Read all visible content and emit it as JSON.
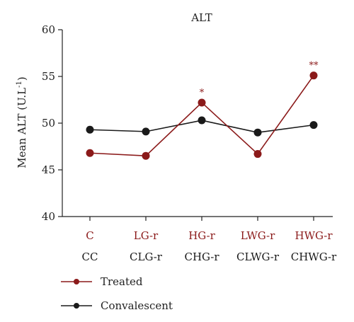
{
  "chart_data": {
    "type": "line",
    "title": "ALT",
    "ylabel": "Mean ALT (U.L",
    "ylabel_superscript": "-1",
    "ylabel_close": ")",
    "ylim": [
      40,
      60
    ],
    "yticks": [
      40,
      45,
      50,
      55,
      60
    ],
    "categories_treated": [
      "C",
      "LG-r",
      "HG-r",
      "LWG-r",
      "HWG-r"
    ],
    "categories_convalescent": [
      "CC",
      "CLG-r",
      "CHG-r",
      "CLWG-r",
      "CHWG-r"
    ],
    "series": [
      {
        "name": "Treated",
        "color": "#8b1a1a",
        "values": [
          46.8,
          46.5,
          52.2,
          46.7,
          55.1
        ],
        "significance": [
          "",
          "",
          "*",
          "",
          "**"
        ]
      },
      {
        "name": "Convalescent",
        "color": "#1a1a1a",
        "values": [
          49.3,
          49.1,
          50.3,
          49.0,
          49.8
        ]
      }
    ],
    "grid": false,
    "legend_position": "bottom-left"
  }
}
